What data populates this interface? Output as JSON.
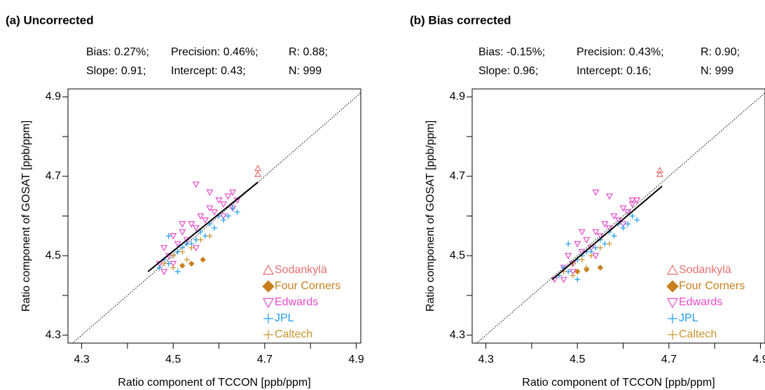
{
  "chart_data": [
    {
      "type": "scatter",
      "title": "(a) Uncorrected",
      "stats": [
        [
          "Bias: 0.27%;",
          "Precision: 0.46%;",
          "R: 0.88;"
        ],
        [
          "Slope: 0.91;",
          "Intercept: 0.43;",
          "N: 999"
        ]
      ],
      "xlabel": "Ratio component of TCCON [ppb/ppm]",
      "ylabel": "Ratio component of GOSAT [ppb/ppm]",
      "xlim": [
        4.27,
        4.91
      ],
      "ylim": [
        4.28,
        4.92
      ],
      "xticks": [
        4.3,
        4.5,
        4.7,
        4.9
      ],
      "yticks": [
        4.3,
        4.5,
        4.7,
        4.9
      ],
      "minor_xticks": [
        4.4,
        4.6,
        4.8
      ],
      "minor_yticks": [
        4.4,
        4.6,
        4.8
      ],
      "legend": "lower right",
      "fit_line": {
        "x": [
          4.445,
          4.685
        ],
        "y": [
          4.46,
          4.685
        ]
      },
      "series": [
        {
          "name": "Sodankylä",
          "color": "#e8706e",
          "marker": "triangle-up",
          "x": [
            4.685,
            4.685
          ],
          "y": [
            4.72,
            4.705
          ]
        },
        {
          "name": "Four Corners",
          "color": "#c8801e",
          "marker": "diamond",
          "x": [
            4.52,
            4.54,
            4.565
          ],
          "y": [
            4.475,
            4.48,
            4.49
          ]
        },
        {
          "name": "Edwards",
          "color": "#e64ccc",
          "marker": "triangle-down",
          "x": [
            4.47,
            4.48,
            4.49,
            4.5,
            4.51,
            4.52,
            4.53,
            4.54,
            4.55,
            4.56,
            4.57,
            4.58,
            4.59,
            4.6,
            4.61,
            4.62,
            4.63,
            4.64,
            4.5,
            4.52,
            4.55,
            4.58,
            4.61,
            4.55,
            4.48,
            4.63
          ],
          "y": [
            4.48,
            4.52,
            4.5,
            4.55,
            4.53,
            4.56,
            4.54,
            4.58,
            4.57,
            4.6,
            4.59,
            4.62,
            4.61,
            4.64,
            4.63,
            4.65,
            4.62,
            4.64,
            4.48,
            4.58,
            4.68,
            4.66,
            4.6,
            4.52,
            4.46,
            4.66
          ]
        },
        {
          "name": "JPL",
          "color": "#1e9ee6",
          "marker": "plus",
          "x": [
            4.47,
            4.48,
            4.49,
            4.5,
            4.51,
            4.52,
            4.53,
            4.54,
            4.55,
            4.56,
            4.57,
            4.58,
            4.59,
            4.6,
            4.61,
            4.62,
            4.63,
            4.64,
            4.51,
            4.49
          ],
          "y": [
            4.47,
            4.49,
            4.48,
            4.5,
            4.51,
            4.52,
            4.53,
            4.53,
            4.54,
            4.56,
            4.55,
            4.58,
            4.57,
            4.6,
            4.59,
            4.6,
            4.62,
            4.61,
            4.46,
            4.55
          ]
        },
        {
          "name": "Caltech",
          "color": "#c8962e",
          "marker": "plus",
          "x": [
            4.48,
            4.5,
            4.52,
            4.54,
            4.56,
            4.58,
            4.5,
            4.53
          ],
          "y": [
            4.48,
            4.5,
            4.51,
            4.52,
            4.54,
            4.55,
            4.47,
            4.49
          ]
        }
      ]
    },
    {
      "type": "scatter",
      "title": "(b) Bias corrected",
      "stats": [
        [
          "Bias: -0.15%;",
          "Precision: 0.43%;",
          "R: 0.90;"
        ],
        [
          "Slope: 0.96;",
          "Intercept: 0.16;",
          "N: 999"
        ]
      ],
      "xlabel": "Ratio component of TCCON [ppb/ppm]",
      "ylabel": "Ratio component of GOSAT [ppb/ppm]",
      "xlim": [
        4.27,
        4.91
      ],
      "ylim": [
        4.28,
        4.92
      ],
      "xticks": [
        4.3,
        4.5,
        4.7,
        4.9
      ],
      "yticks": [
        4.3,
        4.5,
        4.7,
        4.9
      ],
      "minor_xticks": [
        4.4,
        4.6,
        4.8
      ],
      "minor_yticks": [
        4.4,
        4.6,
        4.8
      ],
      "legend": "lower right",
      "fit_line": {
        "x": [
          4.445,
          4.685
        ],
        "y": [
          4.44,
          4.675
        ]
      },
      "series": [
        {
          "name": "Sodankylä",
          "color": "#e8706e",
          "marker": "triangle-up",
          "x": [
            4.68,
            4.68
          ],
          "y": [
            4.715,
            4.705
          ]
        },
        {
          "name": "Four Corners",
          "color": "#c8801e",
          "marker": "diamond",
          "x": [
            4.5,
            4.52,
            4.55
          ],
          "y": [
            4.46,
            4.465,
            4.47
          ]
        },
        {
          "name": "Edwards",
          "color": "#e64ccc",
          "marker": "triangle-down",
          "x": [
            4.45,
            4.47,
            4.48,
            4.49,
            4.5,
            4.51,
            4.52,
            4.53,
            4.54,
            4.55,
            4.56,
            4.57,
            4.58,
            4.59,
            4.6,
            4.61,
            4.62,
            4.63,
            4.49,
            4.51,
            4.54,
            4.57,
            4.6,
            4.54,
            4.47,
            4.62
          ],
          "y": [
            4.44,
            4.47,
            4.5,
            4.48,
            4.53,
            4.51,
            4.54,
            4.52,
            4.56,
            4.55,
            4.58,
            4.57,
            4.6,
            4.59,
            4.62,
            4.61,
            4.63,
            4.64,
            4.46,
            4.56,
            4.66,
            4.65,
            4.58,
            4.5,
            4.44,
            4.64
          ]
        },
        {
          "name": "JPL",
          "color": "#1e9ee6",
          "marker": "plus",
          "x": [
            4.46,
            4.47,
            4.48,
            4.49,
            4.5,
            4.51,
            4.52,
            4.53,
            4.54,
            4.55,
            4.56,
            4.57,
            4.58,
            4.59,
            4.6,
            4.61,
            4.62,
            4.63,
            4.5,
            4.48
          ],
          "y": [
            4.45,
            4.47,
            4.46,
            4.48,
            4.49,
            4.5,
            4.51,
            4.51,
            4.52,
            4.54,
            4.53,
            4.56,
            4.55,
            4.58,
            4.57,
            4.58,
            4.6,
            4.59,
            4.44,
            4.53
          ]
        },
        {
          "name": "Caltech",
          "color": "#c8962e",
          "marker": "plus",
          "x": [
            4.47,
            4.49,
            4.51,
            4.53,
            4.55,
            4.57,
            4.49,
            4.52
          ],
          "y": [
            4.46,
            4.48,
            4.49,
            4.5,
            4.52,
            4.53,
            4.45,
            4.47
          ]
        }
      ]
    }
  ]
}
